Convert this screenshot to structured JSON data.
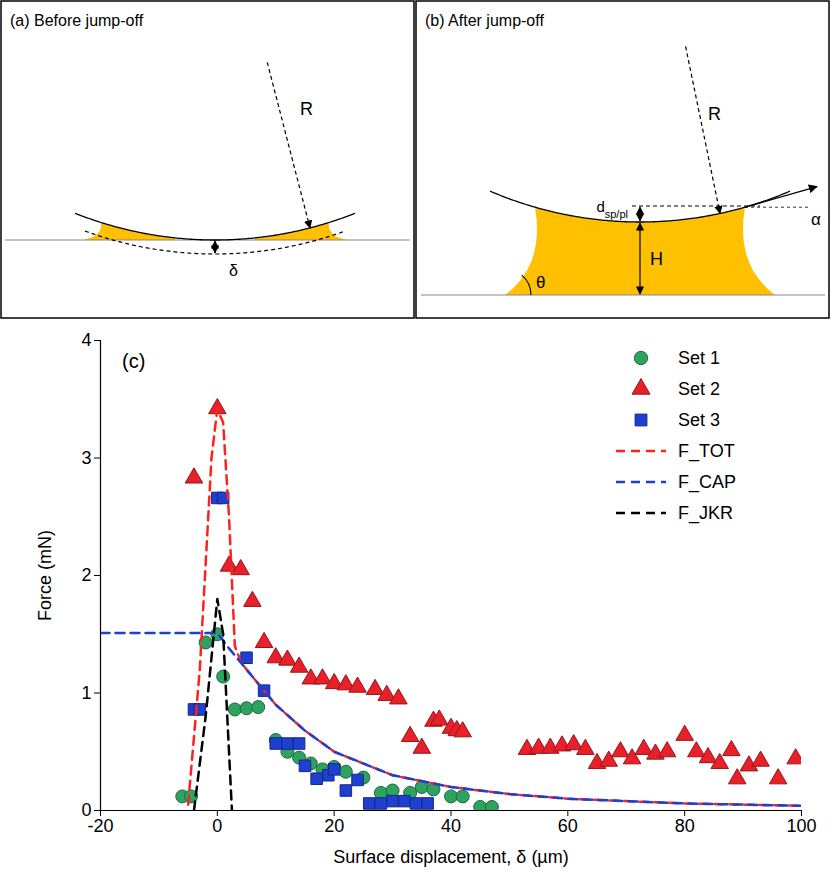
{
  "diagrams": [
    {
      "title": "(a) Before jump-off",
      "radius_label": "R",
      "displacement_label": "δ"
    },
    {
      "title": "(b) After jump-off",
      "radius_label": "R",
      "gap_label": {
        "base": "d",
        "sub": "sp/pl"
      },
      "height_label": "H",
      "contact_angle_label": "θ",
      "tangent_angle_label": "α"
    }
  ],
  "chart_data": {
    "type": "scatter",
    "panel_label": "(c)",
    "x_label": "Surface displacement, δ (µm)",
    "y_label": "Force (mN)",
    "xlim": [
      -20,
      100
    ],
    "xticks": [
      -20,
      0,
      20,
      40,
      60,
      80,
      100
    ],
    "ylim": [
      0,
      4
    ],
    "yticks": [
      0,
      1,
      2,
      3,
      4
    ],
    "grid": false,
    "legend": "top-right",
    "series": [
      {
        "name": "Set 1",
        "type": "scatter",
        "marker": "circle",
        "color": "#2ea35f",
        "x": [
          -6,
          -4.5,
          -2,
          0,
          1,
          3,
          5,
          7,
          10,
          12,
          14,
          16,
          18,
          20,
          22,
          25,
          28,
          30,
          33,
          35,
          37,
          40,
          42,
          45,
          47
        ],
        "values": [
          0.12,
          0.12,
          1.43,
          1.5,
          1.14,
          0.86,
          0.87,
          0.88,
          0.6,
          0.5,
          0.45,
          0.4,
          0.35,
          0.37,
          0.33,
          0.28,
          0.15,
          0.17,
          0.15,
          0.2,
          0.18,
          0.12,
          0.12,
          0.03,
          0.03
        ]
      },
      {
        "name": "Set 2",
        "type": "scatter",
        "marker": "triangle",
        "color": "#e8202a",
        "x": [
          -4,
          0,
          2,
          4,
          6,
          8,
          10,
          12,
          14,
          16,
          18,
          20,
          22,
          24,
          27,
          29,
          31,
          33,
          35,
          37,
          38,
          40,
          41,
          42,
          53,
          55,
          57,
          59,
          61,
          63,
          65,
          67,
          69,
          71,
          73,
          75,
          77,
          80,
          82,
          84,
          86,
          88,
          89,
          91,
          93,
          96,
          99
        ],
        "values": [
          2.83,
          3.42,
          2.08,
          2.05,
          1.78,
          1.43,
          1.3,
          1.28,
          1.22,
          1.12,
          1.12,
          1.08,
          1.07,
          1.05,
          1.03,
          0.98,
          0.95,
          0.63,
          0.53,
          0.76,
          0.77,
          0.7,
          0.68,
          0.67,
          0.52,
          0.53,
          0.53,
          0.55,
          0.56,
          0.52,
          0.4,
          0.42,
          0.5,
          0.44,
          0.52,
          0.48,
          0.5,
          0.64,
          0.5,
          0.45,
          0.4,
          0.51,
          0.27,
          0.38,
          0.42,
          0.27,
          0.44
        ]
      },
      {
        "name": "Set 3",
        "type": "scatter",
        "marker": "square",
        "color": "#1f3fd1",
        "x": [
          -4,
          -3,
          0,
          1,
          5,
          8,
          10,
          12,
          14,
          15,
          17,
          19,
          20,
          22,
          24,
          26,
          28,
          30,
          32,
          34,
          36
        ],
        "values": [
          0.86,
          0.86,
          2.66,
          2.66,
          1.3,
          1.02,
          0.57,
          0.57,
          0.57,
          0.38,
          0.27,
          0.3,
          0.35,
          0.17,
          0.26,
          0.06,
          0.06,
          0.08,
          0.08,
          0.06,
          0.06
        ]
      },
      {
        "name": "F_TOT",
        "type": "line",
        "line_style": "dashed",
        "color": "#ff2020",
        "x": [
          -5,
          -3,
          -1,
          0,
          1,
          2,
          3,
          4,
          5,
          10,
          15,
          20,
          30,
          40,
          50,
          60,
          70,
          80,
          90,
          100
        ],
        "values": [
          0.05,
          1.2,
          3.0,
          3.42,
          3.3,
          2.5,
          1.4,
          1.27,
          1.2,
          0.9,
          0.68,
          0.5,
          0.3,
          0.2,
          0.14,
          0.1,
          0.08,
          0.06,
          0.05,
          0.04
        ]
      },
      {
        "name": "F_CAP",
        "type": "line",
        "line_style": "dashed",
        "color": "#1f3fd1",
        "x": [
          -20,
          -10,
          0,
          2,
          5,
          10,
          15,
          20,
          30,
          40,
          50,
          60,
          70,
          80,
          90,
          100
        ],
        "values": [
          1.51,
          1.51,
          1.51,
          1.38,
          1.2,
          0.9,
          0.68,
          0.5,
          0.3,
          0.2,
          0.14,
          0.1,
          0.08,
          0.06,
          0.05,
          0.04
        ]
      },
      {
        "name": "F_JKR",
        "type": "line",
        "line_style": "dashed",
        "color": "#000000",
        "x": [
          -4,
          -2,
          0,
          1,
          2,
          2.5
        ],
        "values": [
          0,
          0.8,
          1.8,
          1.5,
          0.5,
          0
        ]
      }
    ]
  }
}
